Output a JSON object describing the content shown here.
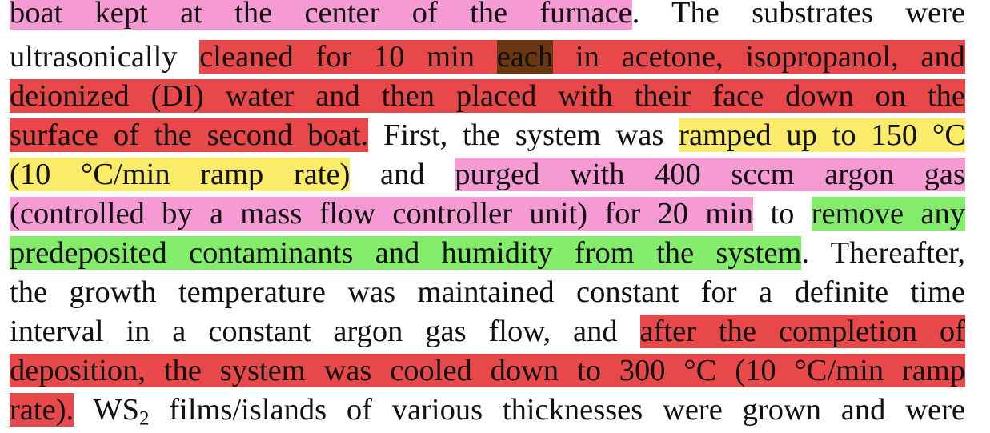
{
  "document": {
    "highlight_colors": {
      "pink": "#f59ad2",
      "red": "#e8484a",
      "dark_brown": "#6a3710",
      "yellow": "#fbeb6a",
      "green": "#83ec6a"
    },
    "lines": [
      {
        "segments": [
          {
            "text": "boat kept at the center of the furnace",
            "hl": "pink"
          },
          {
            "text": ". The substrates were",
            "hl": "none"
          }
        ]
      },
      {
        "segments": [
          {
            "text": "ultrasonically ",
            "hl": "none"
          },
          {
            "text": "cleaned for 10 min ",
            "hl": "red"
          },
          {
            "text": "each",
            "hl": "dark_brown"
          },
          {
            "text": " in acetone, isopropanol, and",
            "hl": "red"
          }
        ]
      },
      {
        "segments": [
          {
            "text": "deionized (DI) water and then placed with their face down on the",
            "hl": "red"
          }
        ]
      },
      {
        "segments": [
          {
            "text": "surface of the second boat.",
            "hl": "red"
          },
          {
            "text": " First, the system was ",
            "hl": "none"
          },
          {
            "text": "ramped up to 150 °C",
            "hl": "yellow"
          }
        ]
      },
      {
        "segments": [
          {
            "text": "(10 °C/min ramp rate)",
            "hl": "yellow"
          },
          {
            "text": " and ",
            "hl": "none"
          },
          {
            "text": "purged with 400 sccm argon gas",
            "hl": "pink"
          }
        ]
      },
      {
        "segments": [
          {
            "text": "(controlled by a mass flow controller unit) for 20 min",
            "hl": "pink"
          },
          {
            "text": " to ",
            "hl": "none"
          },
          {
            "text": "remove any",
            "hl": "green"
          }
        ]
      },
      {
        "segments": [
          {
            "text": "predeposited contaminants and humidity from the system",
            "hl": "green"
          },
          {
            "text": ". Thereafter,",
            "hl": "none"
          }
        ]
      },
      {
        "segments": [
          {
            "text": "the growth temperature was maintained constant for a definite time",
            "hl": "none"
          }
        ]
      },
      {
        "segments": [
          {
            "text": "interval in a constant argon gas flow, and ",
            "hl": "none"
          },
          {
            "text": "after the completion of",
            "hl": "red"
          }
        ]
      },
      {
        "segments": [
          {
            "text": "deposition, the system was cooled down to 300 °C (10 °C/min ramp",
            "hl": "red"
          }
        ]
      },
      {
        "segments": [
          {
            "text": "rate).",
            "hl": "red"
          },
          {
            "text": " WS",
            "hl": "none"
          },
          {
            "text": "2",
            "hl": "none",
            "sub": true
          },
          {
            "text": " films/islands of various thicknesses were grown and were",
            "hl": "none"
          }
        ]
      }
    ]
  }
}
